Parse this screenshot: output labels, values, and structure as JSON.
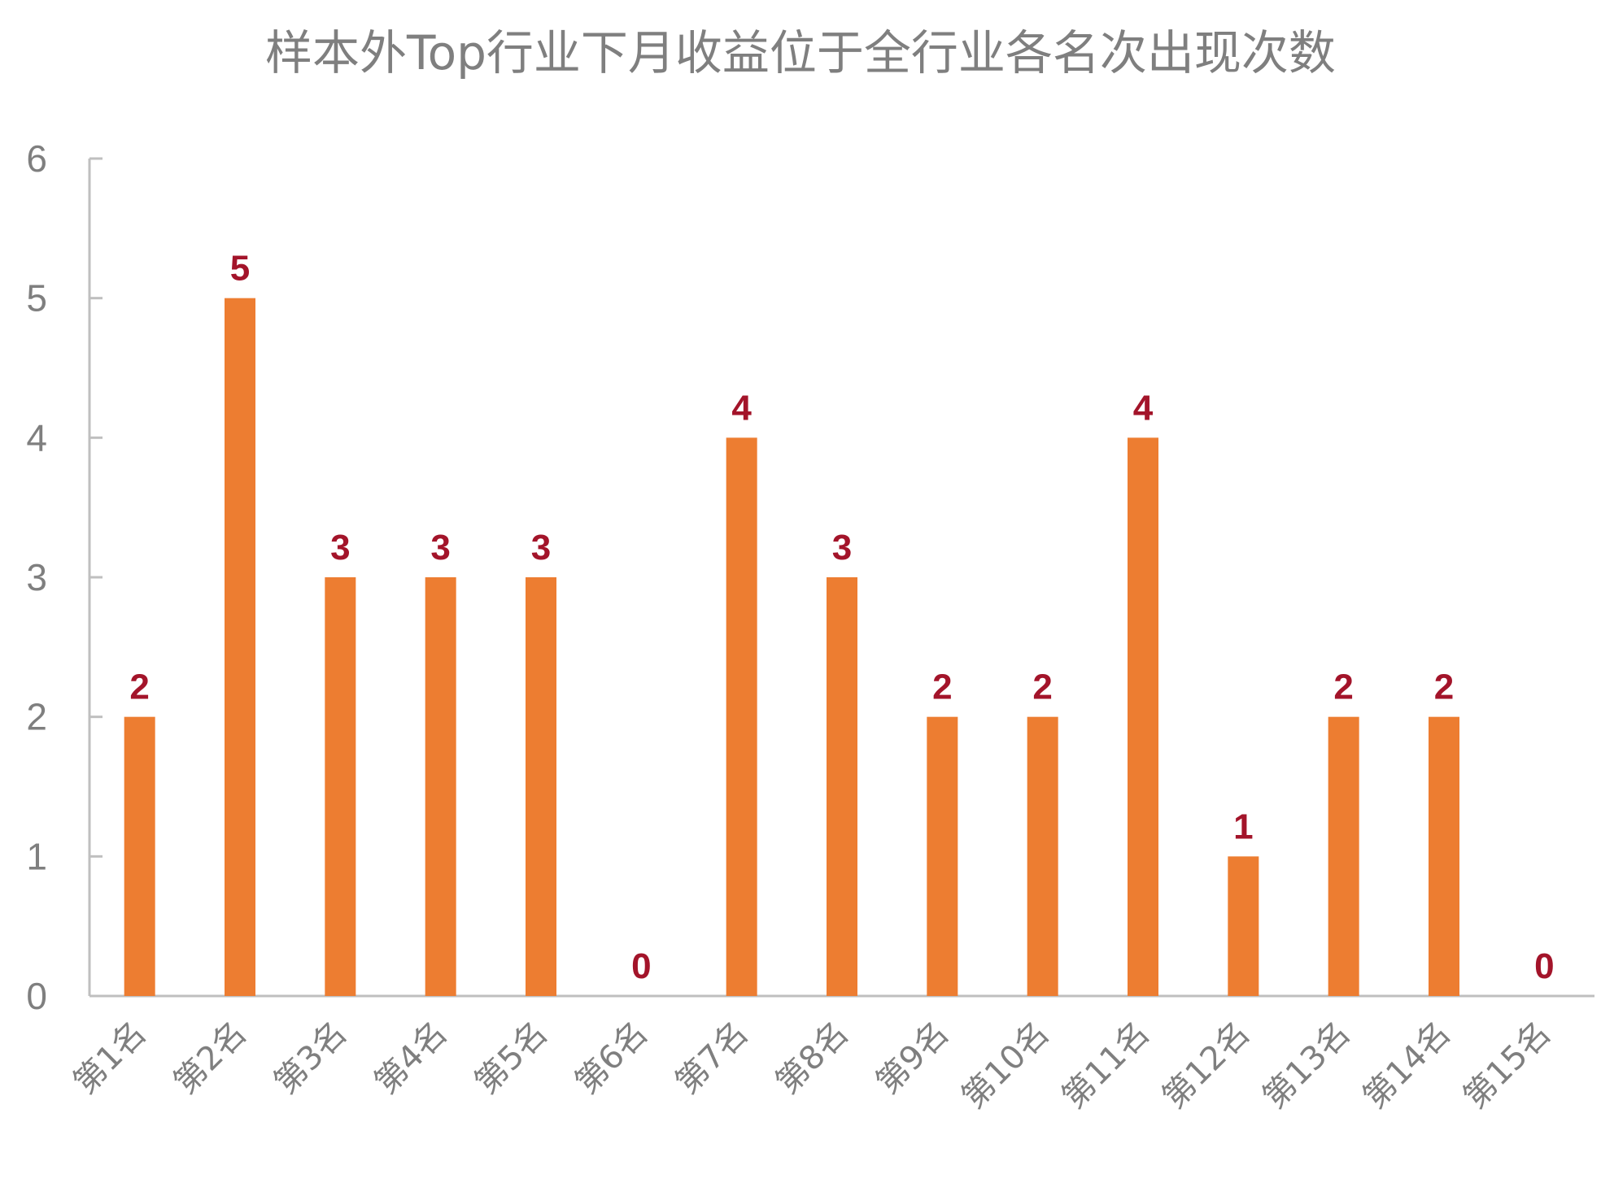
{
  "chart_data": {
    "type": "bar",
    "title": "样本外Top行业下月收益位于全行业各名次出现次数",
    "xlabel": "",
    "ylabel": "",
    "categories": [
      "第1名",
      "第2名",
      "第3名",
      "第4名",
      "第5名",
      "第6名",
      "第7名",
      "第8名",
      "第9名",
      "第10名",
      "第11名",
      "第12名",
      "第13名",
      "第14名",
      "第15名"
    ],
    "values": [
      2,
      5,
      3,
      3,
      3,
      0,
      4,
      3,
      2,
      2,
      4,
      1,
      2,
      2,
      0
    ],
    "ylim": [
      0,
      6
    ],
    "yticks": [
      "0",
      "1",
      "2",
      "3",
      "4",
      "5",
      "6"
    ],
    "grid": false,
    "legend": "none",
    "bar_color": "#ed7d31",
    "label_color": "#a3142a"
  }
}
